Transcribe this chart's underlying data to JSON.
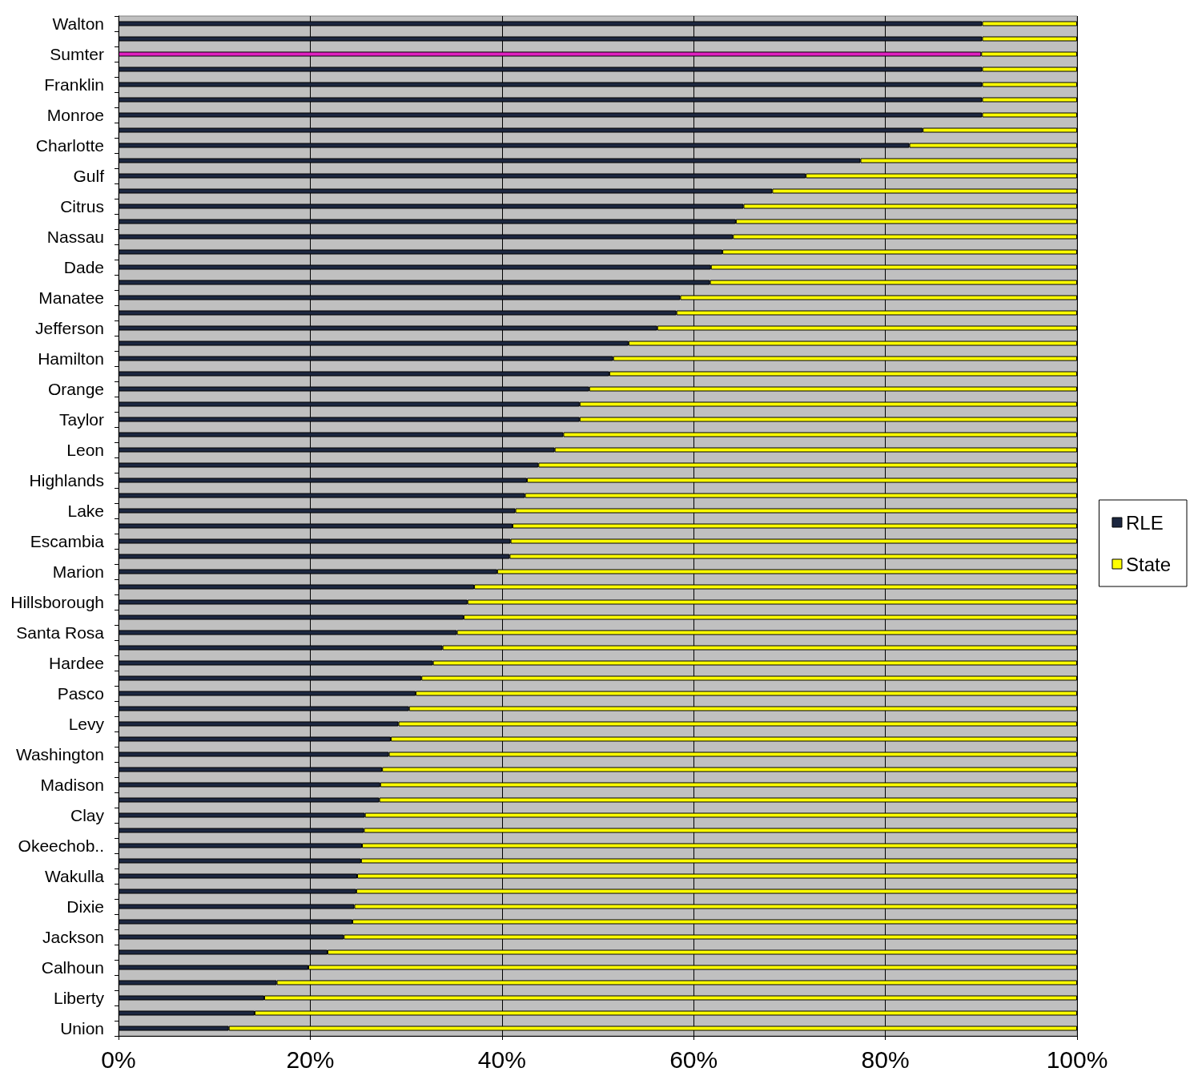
{
  "chart_data": {
    "type": "bar",
    "orientation": "horizontal",
    "stacked": true,
    "categories": [
      "Walton",
      null,
      "Sumter",
      null,
      "Franklin",
      null,
      "Monroe",
      null,
      "Charlotte",
      null,
      "Gulf",
      null,
      "Citrus",
      null,
      "Nassau",
      null,
      "Dade",
      null,
      "Manatee",
      null,
      "Jefferson",
      null,
      "Hamilton",
      null,
      "Orange",
      null,
      "Taylor",
      null,
      "Leon",
      null,
      "Highlands",
      null,
      "Lake",
      null,
      "Escambia",
      null,
      "Marion",
      null,
      "Hillsborough",
      null,
      "Santa Rosa",
      null,
      "Hardee",
      null,
      "Pasco",
      null,
      "Levy",
      null,
      "Washington",
      null,
      "Madison",
      null,
      "Clay",
      null,
      "Okeechob..",
      null,
      "Wakulla",
      null,
      "Dixie",
      null,
      "Jackson",
      null,
      "Calhoun",
      null,
      "Liberty",
      null,
      "Union"
    ],
    "series": [
      {
        "name": "RLE",
        "color": "#1c2740",
        "colors": [
          "#1c2740",
          "#1c2740",
          "#e020c0",
          "#1c2740",
          "#1c2740",
          "#1c2740",
          "#1c2740",
          "#1c2740",
          "#1c2740",
          "#1c2740",
          "#1c2740",
          "#1c2740",
          "#1c2740",
          "#1c2740",
          "#1c2740",
          "#1c2740",
          "#1c2740",
          "#1c2740",
          "#1c2740",
          "#1c2740",
          "#1c2740",
          "#1c2740",
          "#1c2740",
          "#1c2740",
          "#1c2740",
          "#1c2740",
          "#1c2740",
          "#1c2740",
          "#1c2740",
          "#1c2740",
          "#1c2740",
          "#1c2740",
          "#1c2740",
          "#1c2740",
          "#1c2740",
          "#1c2740",
          "#1c2740",
          "#1c2740",
          "#1c2740",
          "#1c2740",
          "#1c2740",
          "#1c2740",
          "#1c2740",
          "#1c2740",
          "#1c2740",
          "#1c2740",
          "#1c2740",
          "#1c2740",
          "#1c2740",
          "#1c2740",
          "#1c2740",
          "#1c2740",
          "#1c2740",
          "#1c2740",
          "#1c2740",
          "#1c2740",
          "#1c2740",
          "#1c2740",
          "#1c2740",
          "#1c2740",
          "#1c2740",
          "#1c2740",
          "#1c2740",
          "#1c2740",
          "#1c2740",
          "#1c2740",
          "#1c2740"
        ],
        "values": [
          90.1,
          90.1,
          90,
          90.1,
          90.1,
          90.1,
          90.1,
          83.9,
          82.5,
          77.4,
          71.7,
          68.2,
          65.2,
          64.4,
          64.1,
          63,
          61.8,
          61.7,
          58.6,
          58.2,
          56.2,
          53.2,
          51.6,
          51.2,
          49.1,
          48.1,
          48.1,
          46.4,
          45.5,
          43.8,
          42.6,
          42.4,
          41.4,
          41.1,
          40.9,
          40.8,
          39.5,
          37.1,
          36.4,
          36,
          35.3,
          33.8,
          32.8,
          31.6,
          31,
          30.3,
          29.2,
          28.4,
          28.2,
          27.5,
          27.3,
          27.2,
          25.7,
          25.6,
          25.4,
          25.3,
          24.9,
          24.8,
          24.6,
          24.4,
          23.5,
          21.8,
          19.8,
          16.5,
          15.2,
          14.2,
          11.5
        ]
      },
      {
        "name": "State",
        "color": "#ffff00",
        "values": [
          9.9,
          9.9,
          10,
          9.9,
          9.9,
          9.9,
          9.9,
          16.1,
          17.5,
          22.6,
          28.3,
          31.8,
          34.8,
          35.6,
          35.9,
          37,
          38.2,
          38.3,
          41.4,
          41.8,
          43.8,
          46.8,
          48.4,
          48.8,
          50.9,
          51.9,
          51.9,
          53.6,
          54.5,
          56.2,
          57.4,
          57.6,
          58.6,
          58.9,
          59.1,
          59.2,
          60.5,
          62.9,
          63.6,
          64,
          64.7,
          66.2,
          67.2,
          68.4,
          69,
          69.7,
          70.8,
          71.6,
          71.8,
          72.5,
          72.7,
          72.8,
          74.3,
          74.4,
          74.6,
          74.7,
          75.1,
          75.2,
          75.4,
          75.6,
          76.5,
          78.2,
          80.2,
          83.5,
          84.8,
          85.8,
          88.5
        ]
      }
    ],
    "xlim": [
      0,
      100
    ],
    "xticks": [
      {
        "value": 0,
        "label": "0%"
      },
      {
        "value": 20,
        "label": "20%"
      },
      {
        "value": 40,
        "label": "40%"
      },
      {
        "value": 60,
        "label": "60%"
      },
      {
        "value": 80,
        "label": "80%"
      },
      {
        "value": 100,
        "label": "100%"
      }
    ],
    "grid": "x",
    "legend": "right",
    "marker": "square"
  }
}
